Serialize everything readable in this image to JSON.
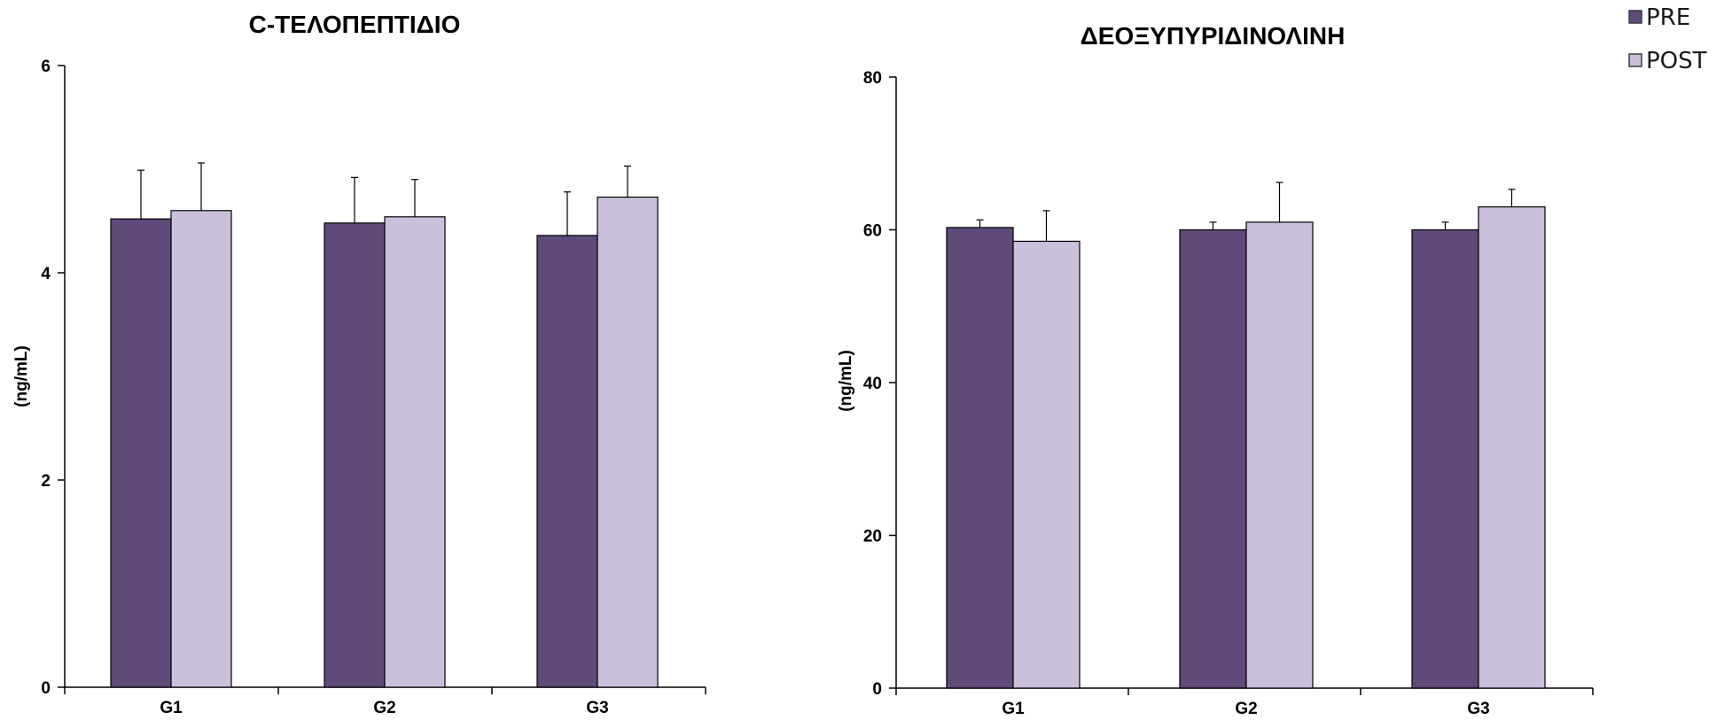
{
  "legend": [
    {
      "name": "PRE",
      "color": "#5f4a7a"
    },
    {
      "name": "POST",
      "color": "#cbc0db"
    }
  ],
  "chart_data": [
    {
      "type": "bar",
      "title": "C-ΤΕΛΟΠΕΠΤΙΔΙΟ",
      "ylabel": "(ng/mL)",
      "xlabel": "",
      "categories": [
        "G1",
        "G2",
        "G3"
      ],
      "ylim": [
        0,
        6
      ],
      "yticks": [
        0,
        2,
        4,
        6
      ],
      "series": [
        {
          "name": "PRE",
          "values": [
            4.52,
            4.48,
            4.36
          ],
          "errors": [
            0.47,
            0.44,
            0.42
          ]
        },
        {
          "name": "POST",
          "values": [
            4.6,
            4.54,
            4.73
          ],
          "errors": [
            0.46,
            0.36,
            0.3
          ]
        }
      ]
    },
    {
      "type": "bar",
      "title": "ΔΕΟΞΥΠΥΡΙΔΙΝΟΛΙΝΗ",
      "ylabel": "(ng/mL)",
      "xlabel": "",
      "categories": [
        "G1",
        "G2",
        "G3"
      ],
      "ylim": [
        0,
        80
      ],
      "yticks": [
        0,
        20,
        40,
        60,
        80
      ],
      "series": [
        {
          "name": "PRE",
          "values": [
            60.3,
            60.0,
            60.0
          ],
          "errors": [
            1.0,
            1.0,
            1.0
          ]
        },
        {
          "name": "POST",
          "values": [
            58.5,
            61.0,
            63.0
          ],
          "errors": [
            4.0,
            5.2,
            2.3
          ]
        }
      ]
    }
  ]
}
